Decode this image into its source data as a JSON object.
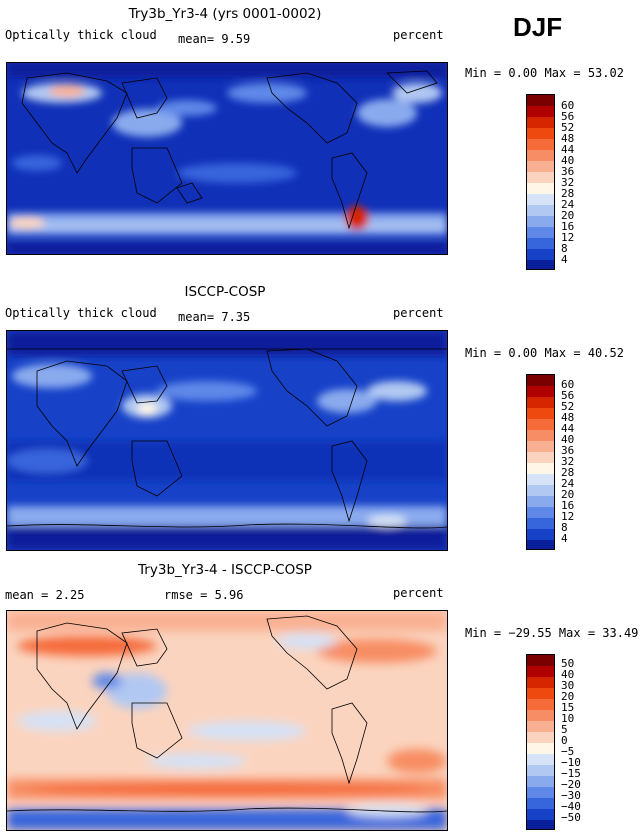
{
  "season": "DJF",
  "panels": [
    {
      "title": "Try3b_Yr3-4 (yrs 0001-0002)",
      "left_label": "Optically thick cloud",
      "mid_label": "mean=   9.59",
      "right_label": "percent",
      "minmax": "Min =   0.00 Max =  53.02",
      "colorbar": {
        "ticks": [
          "60",
          "56",
          "52",
          "48",
          "44",
          "40",
          "36",
          "32",
          "28",
          "24",
          "20",
          "16",
          "12",
          "8",
          "4"
        ],
        "colors": [
          "#7a0000",
          "#b00000",
          "#d62600",
          "#ee4a10",
          "#f56b3a",
          "#f78d64",
          "#f9b092",
          "#fbd4bf",
          "#fff6e8",
          "#d6e2f6",
          "#b1c8f2",
          "#8aaaee",
          "#5f88e8",
          "#3765dc",
          "#1742c8",
          "#0a1f9a"
        ]
      }
    },
    {
      "title": "ISCCP-COSP",
      "left_label": "Optically thick cloud",
      "mid_label": "mean=   7.35",
      "right_label": "percent",
      "minmax": "Min =   0.00 Max =  40.52",
      "colorbar": {
        "ticks": [
          "60",
          "56",
          "52",
          "48",
          "44",
          "40",
          "36",
          "32",
          "28",
          "24",
          "20",
          "16",
          "12",
          "8",
          "4"
        ],
        "colors": [
          "#7a0000",
          "#b00000",
          "#d62600",
          "#ee4a10",
          "#f56b3a",
          "#f78d64",
          "#f9b092",
          "#fbd4bf",
          "#fff6e8",
          "#d6e2f6",
          "#b1c8f2",
          "#8aaaee",
          "#5f88e8",
          "#3765dc",
          "#1742c8",
          "#0a1f9a"
        ]
      }
    },
    {
      "title": "Try3b_Yr3-4 - ISCCP-COSP",
      "left_label": "mean =   2.25",
      "mid_label": "rmse =   5.96",
      "right_label": "percent",
      "minmax": "Min = −29.55 Max =  33.49",
      "colorbar": {
        "ticks": [
          "50",
          "40",
          "30",
          "20",
          "15",
          "10",
          "5",
          "0",
          "−5",
          "−10",
          "−15",
          "−20",
          "−30",
          "−40",
          "−50"
        ],
        "colors": [
          "#7a0000",
          "#b00000",
          "#d62600",
          "#ee4a10",
          "#f56b3a",
          "#f78d64",
          "#f9b092",
          "#fbd4bf",
          "#fff6e8",
          "#d6e2f6",
          "#b1c8f2",
          "#8aaaee",
          "#5f88e8",
          "#3765dc",
          "#1742c8",
          "#0a1f9a"
        ]
      }
    }
  ],
  "chart_data": [
    {
      "type": "heatmap",
      "title": "Try3b_Yr3-4 (yrs 0001-0002)",
      "variable": "Optically thick cloud",
      "units": "percent",
      "mean": 9.59,
      "min": 0.0,
      "max": 53.02,
      "levels": [
        4,
        8,
        12,
        16,
        20,
        24,
        28,
        32,
        36,
        40,
        44,
        48,
        52,
        56,
        60
      ]
    },
    {
      "type": "heatmap",
      "title": "ISCCP-COSP",
      "variable": "Optically thick cloud",
      "units": "percent",
      "mean": 7.35,
      "min": 0.0,
      "max": 40.52,
      "levels": [
        4,
        8,
        12,
        16,
        20,
        24,
        28,
        32,
        36,
        40,
        44,
        48,
        52,
        56,
        60
      ]
    },
    {
      "type": "heatmap",
      "title": "Try3b_Yr3-4 - ISCCP-COSP",
      "units": "percent",
      "mean": 2.25,
      "rmse": 5.96,
      "min": -29.55,
      "max": 33.49,
      "levels": [
        -50,
        -40,
        -30,
        -20,
        -15,
        -10,
        -5,
        0,
        5,
        10,
        15,
        20,
        30,
        40,
        50
      ]
    }
  ]
}
